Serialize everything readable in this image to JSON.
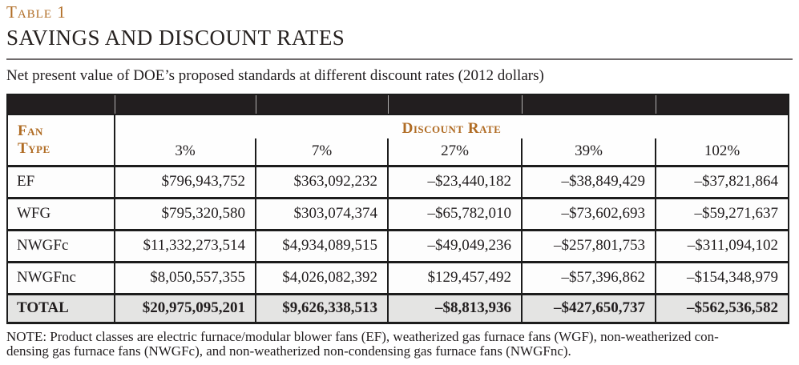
{
  "page": {
    "table_label": "Table 1",
    "title": "SAVINGS AND DISCOUNT RATES",
    "subtitle": "Net present value of DOE’s proposed standards at different discount rates (2012 dollars)"
  },
  "table": {
    "fan_type_header": {
      "line1": "Fan",
      "line2": "Type"
    },
    "discount_rate_header": "Discount Rate",
    "rate_columns": [
      "3%",
      "7%",
      "27%",
      "39%",
      "102%"
    ],
    "rows": [
      {
        "label": "EF",
        "values": [
          "$796,943,752",
          "$363,092,232",
          "–$23,440,182",
          "–$38,849,429",
          "–$37,821,864"
        ]
      },
      {
        "label": "WFG",
        "values": [
          "$795,320,580",
          "$303,074,374",
          "–$65,782,010",
          "–$73,602,693",
          "–$59,271,637"
        ]
      },
      {
        "label": "NWGFc",
        "values": [
          "$11,332,273,514",
          "$4,934,089,515",
          "–$49,049,236",
          "–$257,801,753",
          "–$311,094,102"
        ]
      },
      {
        "label": "NWGFnc",
        "values": [
          "$8,050,557,355",
          "$4,026,082,392",
          "$129,457,492",
          "–$57,396,862",
          "–$154,348,979"
        ]
      }
    ],
    "total_row": {
      "label": "TOTAL",
      "values": [
        "$20,975,095,201",
        "$9,626,338,513",
        "–$8,813,936",
        "–$427,650,737",
        "–$562,536,582"
      ]
    }
  },
  "note": {
    "line1": "NOTE: Product classes are electric furnace/modular blower fans (EF), weatherized gas furnace fans (WGF), non-weatherized con-",
    "line2": "densing gas furnace fans (NWGFc), and non-weatherized non-condensing gas furnace fans (NWGFnc)."
  },
  "colors": {
    "accent_orange": "#b06c24",
    "band_black": "#221e1f",
    "total_row_gray": "#e4e4e3",
    "border_black": "#1c1c1c"
  }
}
